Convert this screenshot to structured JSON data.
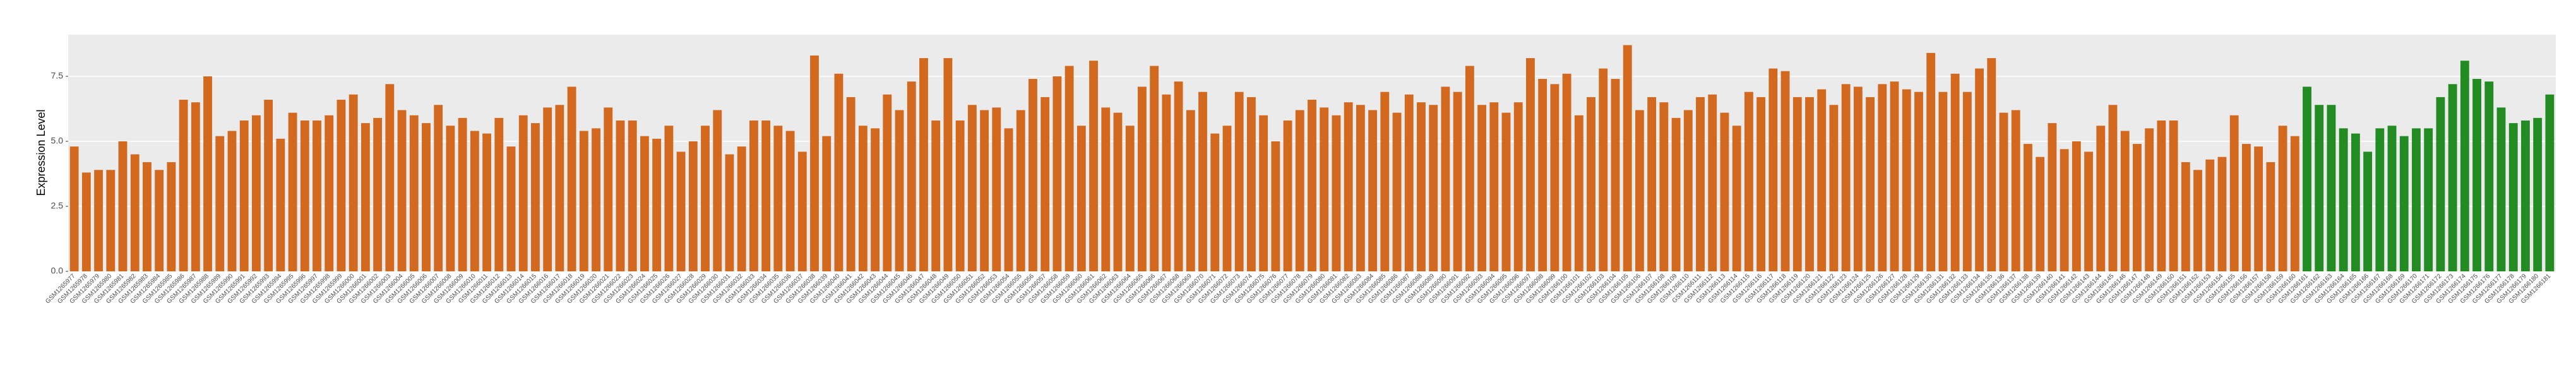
{
  "chart_data": {
    "type": "bar",
    "y_label": "Expression Level",
    "categories": [
      "GSM1265977",
      "GSM1265978",
      "GSM1265979",
      "GSM1265980",
      "GSM1265981",
      "GSM1265982",
      "GSM1265983",
      "GSM1265984",
      "GSM1265985",
      "GSM1265986",
      "GSM1265987",
      "GSM1265988",
      "GSM1265989",
      "GSM1265990",
      "GSM1265991",
      "GSM1265992",
      "GSM1265993",
      "GSM1265994",
      "GSM1265995",
      "GSM1265996",
      "GSM1265997",
      "GSM1265998",
      "GSM1265999",
      "GSM1266000",
      "GSM1266001",
      "GSM1266002",
      "GSM1266003",
      "GSM1266004",
      "GSM1266005",
      "GSM1266006",
      "GSM1266007",
      "GSM1266008",
      "GSM1266009",
      "GSM1266010",
      "GSM1266011",
      "GSM1266012",
      "GSM1266013",
      "GSM1266014",
      "GSM1266015",
      "GSM1266016",
      "GSM1266017",
      "GSM1266018",
      "GSM1266019",
      "GSM1266020",
      "GSM1266021",
      "GSM1266022",
      "GSM1266023",
      "GSM1266024",
      "GSM1266025",
      "GSM1266026",
      "GSM1266027",
      "GSM1266028",
      "GSM1266029",
      "GSM1266030",
      "GSM1266031",
      "GSM1266032",
      "GSM1266033",
      "GSM1266034",
      "GSM1266035",
      "GSM1266036",
      "GSM1266037",
      "GSM1266038",
      "GSM1266039",
      "GSM1266040",
      "GSM1266041",
      "GSM1266042",
      "GSM1266043",
      "GSM1266044",
      "GSM1266045",
      "GSM1266046",
      "GSM1266047",
      "GSM1266048",
      "GSM1266049",
      "GSM1266050",
      "GSM1266051",
      "GSM1266052",
      "GSM1266053",
      "GSM1266054",
      "GSM1266055",
      "GSM1266056",
      "GSM1266057",
      "GSM1266058",
      "GSM1266059",
      "GSM1266060",
      "GSM1266061",
      "GSM1266062",
      "GSM1266063",
      "GSM1266064",
      "GSM1266065",
      "GSM1266066",
      "GSM1266067",
      "GSM1266068",
      "GSM1266069",
      "GSM1266070",
      "GSM1266071",
      "GSM1266072",
      "GSM1266073",
      "GSM1266074",
      "GSM1266075",
      "GSM1266076",
      "GSM1266077",
      "GSM1266078",
      "GSM1266079",
      "GSM1266080",
      "GSM1266081",
      "GSM1266082",
      "GSM1266083",
      "GSM1266084",
      "GSM1266085",
      "GSM1266086",
      "GSM1266087",
      "GSM1266088",
      "GSM1266089",
      "GSM1266090",
      "GSM1266091",
      "GSM1266092",
      "GSM1266093",
      "GSM1266094",
      "GSM1266095",
      "GSM1266096",
      "GSM1266097",
      "GSM1266098",
      "GSM1266099",
      "GSM1266100",
      "GSM1266101",
      "GSM1266102",
      "GSM1266103",
      "GSM1266104",
      "GSM1266105",
      "GSM1266106",
      "GSM1266107",
      "GSM1266108",
      "GSM1266109",
      "GSM1266110",
      "GSM1266111",
      "GSM1266112",
      "GSM1266113",
      "GSM1266114",
      "GSM1266115",
      "GSM1266116",
      "GSM1266117",
      "GSM1266118",
      "GSM1266119",
      "GSM1266120",
      "GSM1266121",
      "GSM1266122",
      "GSM1266123",
      "GSM1266124",
      "GSM1266125",
      "GSM1266126",
      "GSM1266127",
      "GSM1266128",
      "GSM1266129",
      "GSM1266130",
      "GSM1266131",
      "GSM1266132",
      "GSM1266133",
      "GSM1266134",
      "GSM1266135",
      "GSM1266136",
      "GSM1266137",
      "GSM1266138",
      "GSM1266139",
      "GSM1266140",
      "GSM1266141",
      "GSM1266142",
      "GSM1266143",
      "GSM1266144",
      "GSM1266145",
      "GSM1266146",
      "GSM1266147",
      "GSM1266148",
      "GSM1266149",
      "GSM1266150",
      "GSM1266151",
      "GSM1266152",
      "GSM1266153",
      "GSM1266154",
      "GSM1266155",
      "GSM1266156",
      "GSM1266157",
      "GSM1266158",
      "GSM1266159",
      "GSM1266160",
      "GSM1266161",
      "GSM1266162",
      "GSM1266163",
      "GSM1266164",
      "GSM1266165",
      "GSM1266166",
      "GSM1266167",
      "GSM1266168",
      "GSM1266169",
      "GSM1266170",
      "GSM1266171",
      "GSM1266172",
      "GSM1266173",
      "GSM1266174",
      "GSM1266175",
      "GSM1266176",
      "GSM1266177",
      "GSM1266178",
      "GSM1266179",
      "GSM1266180",
      "GSM1266181"
    ],
    "values": [
      4.8,
      3.8,
      3.9,
      3.9,
      5.0,
      4.5,
      4.2,
      3.9,
      4.2,
      6.6,
      6.5,
      7.5,
      5.2,
      5.4,
      5.8,
      6.0,
      6.6,
      5.1,
      6.1,
      5.8,
      5.8,
      6.0,
      6.6,
      6.8,
      5.7,
      5.9,
      7.2,
      6.2,
      6.0,
      5.7,
      6.4,
      5.6,
      5.9,
      5.4,
      5.3,
      5.9,
      4.8,
      6.0,
      5.7,
      6.3,
      6.4,
      7.1,
      5.4,
      5.5,
      6.3,
      5.8,
      5.8,
      5.2,
      5.1,
      5.6,
      4.6,
      5.0,
      5.6,
      6.2,
      4.5,
      4.8,
      5.8,
      5.8,
      5.6,
      5.4,
      4.6,
      8.3,
      5.2,
      7.6,
      6.7,
      5.6,
      5.5,
      6.8,
      6.2,
      7.3,
      8.2,
      5.8,
      8.2,
      5.8,
      6.4,
      6.2,
      6.3,
      5.5,
      6.2,
      7.4,
      6.7,
      7.5,
      7.9,
      5.6,
      8.1,
      6.3,
      6.1,
      5.6,
      7.1,
      7.9,
      6.8,
      7.3,
      6.2,
      6.9,
      5.3,
      5.6,
      6.9,
      6.7,
      6.0,
      5.0,
      5.8,
      6.2,
      6.6,
      6.3,
      6.0,
      6.5,
      6.4,
      6.2,
      6.9,
      6.1,
      6.8,
      6.5,
      6.4,
      7.1,
      6.9,
      7.9,
      6.4,
      6.5,
      6.1,
      6.5,
      8.2,
      7.4,
      7.2,
      7.6,
      6.0,
      6.7,
      7.8,
      7.4,
      8.7,
      6.2,
      6.7,
      6.5,
      5.9,
      6.2,
      6.7,
      6.8,
      6.1,
      5.6,
      6.9,
      6.7,
      7.8,
      7.7,
      6.7,
      6.7,
      7.0,
      6.4,
      7.2,
      7.1,
      6.7,
      7.2,
      7.3,
      7.0,
      6.9,
      8.4,
      6.9,
      7.6,
      6.9,
      7.8,
      8.2,
      6.1,
      6.2,
      4.9,
      4.4,
      5.7,
      4.7,
      5.0,
      4.6,
      5.6,
      6.4,
      5.4,
      4.9,
      5.5,
      5.8,
      5.8,
      4.2,
      3.9,
      4.3,
      4.4,
      6.0,
      4.9,
      4.8,
      4.2,
      5.6,
      5.2,
      7.1,
      6.4,
      6.4,
      5.5,
      5.3,
      4.6,
      5.5,
      5.6,
      5.2,
      5.5,
      5.5,
      6.7,
      7.2,
      8.1,
      7.4,
      7.3,
      6.3,
      5.7,
      5.8,
      5.9,
      6.8
    ],
    "colors": [
      "#d2691e",
      "#d2691e",
      "#d2691e",
      "#d2691e",
      "#d2691e",
      "#d2691e",
      "#d2691e",
      "#d2691e",
      "#d2691e",
      "#d2691e",
      "#d2691e",
      "#d2691e",
      "#d2691e",
      "#d2691e",
      "#d2691e",
      "#d2691e",
      "#d2691e",
      "#d2691e",
      "#d2691e",
      "#d2691e",
      "#d2691e",
      "#d2691e",
      "#d2691e",
      "#d2691e",
      "#d2691e",
      "#d2691e",
      "#d2691e",
      "#d2691e",
      "#d2691e",
      "#d2691e",
      "#d2691e",
      "#d2691e",
      "#d2691e",
      "#d2691e",
      "#d2691e",
      "#d2691e",
      "#d2691e",
      "#d2691e",
      "#d2691e",
      "#d2691e",
      "#d2691e",
      "#d2691e",
      "#d2691e",
      "#d2691e",
      "#d2691e",
      "#d2691e",
      "#d2691e",
      "#d2691e",
      "#d2691e",
      "#d2691e",
      "#d2691e",
      "#d2691e",
      "#d2691e",
      "#d2691e",
      "#d2691e",
      "#d2691e",
      "#d2691e",
      "#d2691e",
      "#d2691e",
      "#d2691e",
      "#d2691e",
      "#d2691e",
      "#d2691e",
      "#d2691e",
      "#d2691e",
      "#d2691e",
      "#d2691e",
      "#d2691e",
      "#d2691e",
      "#d2691e",
      "#d2691e",
      "#d2691e",
      "#d2691e",
      "#d2691e",
      "#d2691e",
      "#d2691e",
      "#d2691e",
      "#d2691e",
      "#d2691e",
      "#d2691e",
      "#d2691e",
      "#d2691e",
      "#d2691e",
      "#d2691e",
      "#d2691e",
      "#d2691e",
      "#d2691e",
      "#d2691e",
      "#d2691e",
      "#d2691e",
      "#d2691e",
      "#d2691e",
      "#d2691e",
      "#d2691e",
      "#d2691e",
      "#d2691e",
      "#d2691e",
      "#d2691e",
      "#d2691e",
      "#d2691e",
      "#d2691e",
      "#d2691e",
      "#d2691e",
      "#d2691e",
      "#d2691e",
      "#d2691e",
      "#d2691e",
      "#d2691e",
      "#d2691e",
      "#d2691e",
      "#d2691e",
      "#d2691e",
      "#d2691e",
      "#d2691e",
      "#d2691e",
      "#d2691e",
      "#d2691e",
      "#d2691e",
      "#d2691e",
      "#d2691e",
      "#d2691e",
      "#d2691e",
      "#d2691e",
      "#d2691e",
      "#d2691e",
      "#d2691e",
      "#d2691e",
      "#d2691e",
      "#d2691e",
      "#d2691e",
      "#d2691e",
      "#d2691e",
      "#d2691e",
      "#d2691e",
      "#d2691e",
      "#d2691e",
      "#d2691e",
      "#d2691e",
      "#d2691e",
      "#d2691e",
      "#d2691e",
      "#d2691e",
      "#d2691e",
      "#d2691e",
      "#d2691e",
      "#d2691e",
      "#d2691e",
      "#d2691e",
      "#d2691e",
      "#d2691e",
      "#d2691e",
      "#d2691e",
      "#d2691e",
      "#d2691e",
      "#d2691e",
      "#d2691e",
      "#d2691e",
      "#d2691e",
      "#d2691e",
      "#d2691e",
      "#d2691e",
      "#d2691e",
      "#d2691e",
      "#d2691e",
      "#d2691e",
      "#d2691e",
      "#d2691e",
      "#d2691e",
      "#d2691e",
      "#d2691e",
      "#d2691e",
      "#d2691e",
      "#d2691e",
      "#d2691e",
      "#d2691e",
      "#d2691e",
      "#d2691e",
      "#d2691e",
      "#d2691e",
      "#d2691e",
      "#d2691e",
      "#d2691e",
      "#d2691e",
      "#d2691e",
      "#228b22",
      "#228b22",
      "#228b22",
      "#228b22",
      "#228b22",
      "#228b22",
      "#228b22",
      "#228b22",
      "#228b22",
      "#228b22",
      "#228b22",
      "#228b22",
      "#228b22",
      "#228b22",
      "#228b22",
      "#228b22",
      "#228b22",
      "#228b22",
      "#228b22",
      "#228b22",
      "#228b22"
    ],
    "ylim": [
      0,
      9.1
    ],
    "yticks": [
      {
        "value": 0,
        "label": "0.0"
      },
      {
        "value": 2.5,
        "label": "2.5"
      },
      {
        "value": 5,
        "label": "5.0"
      },
      {
        "value": 7.5,
        "label": "7.5"
      }
    ],
    "grid": true
  }
}
